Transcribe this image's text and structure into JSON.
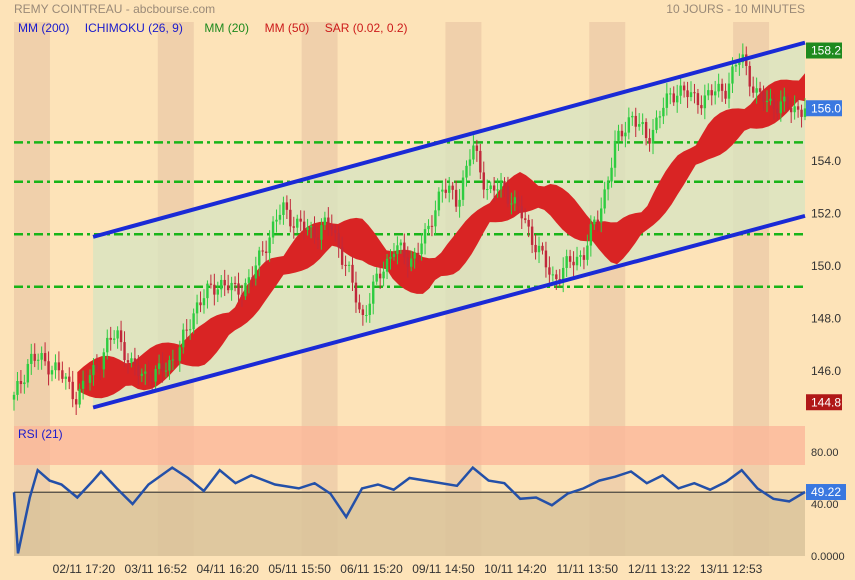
{
  "header": {
    "title": "REMY COINTREAU - abcbourse.com",
    "period": "10 JOURS - 10 MINUTES"
  },
  "legend": [
    {
      "label": "MM (200)",
      "color": "#1a1acc"
    },
    {
      "label": "ICHIMOKU (26, 9)",
      "color": "#1a1acc"
    },
    {
      "label": "MM (20)",
      "color": "#1e8a1e"
    },
    {
      "label": "MM (50)",
      "color": "#cc1a1a"
    },
    {
      "label": "SAR (0.02, 0.2)",
      "color": "#cc1a1a"
    }
  ],
  "colors": {
    "background": "#fde3b8",
    "session_band": "#ebc9a7",
    "channel_fill": "#d8e3c0",
    "channel_line": "#1a2ad6",
    "horizontal_line": "#18b418",
    "cloud": "#d92424",
    "candle_up": "#2ecc40",
    "candle_down": "#c0283a",
    "rsi_line": "#2450a8",
    "rsi_over": "#fbb69a",
    "rsi_under": "#d9c39a"
  },
  "chart_data": [
    {
      "type": "candlestick",
      "title": "REMY COINTREAU",
      "ylim": [
        144.2,
        158.6
      ],
      "y_ticks": [
        146.0,
        148.0,
        150.0,
        152.0,
        154.0,
        156.0
      ],
      "x_tick_labels": [
        "02/11 17:20",
        "03/11 16:52",
        "04/11 16:20",
        "05/11 15:50",
        "06/11 15:20",
        "09/11 14:50",
        "10/11 14:20",
        "11/11 13:50",
        "12/11 13:22",
        "13/11 12:53"
      ],
      "badges": {
        "high": "158.2",
        "last": "156.0",
        "low": "144.8"
      },
      "horizontal_levels": [
        154.7,
        153.2,
        151.2,
        149.2
      ],
      "channel": {
        "upper": {
          "start": [
            0.1,
            151.1
          ],
          "end": [
            1.0,
            158.5
          ]
        },
        "lower": {
          "start": [
            0.1,
            144.6
          ],
          "end": [
            1.0,
            151.9
          ]
        }
      },
      "price_path": [
        [
          0.0,
          144.9
        ],
        [
          0.02,
          146.5
        ],
        [
          0.05,
          146.2
        ],
        [
          0.08,
          145.0
        ],
        [
          0.11,
          146.5
        ],
        [
          0.13,
          147.5
        ],
        [
          0.15,
          146.0
        ],
        [
          0.18,
          145.8
        ],
        [
          0.21,
          146.8
        ],
        [
          0.23,
          148.5
        ],
        [
          0.26,
          149.4
        ],
        [
          0.28,
          149.0
        ],
        [
          0.3,
          149.5
        ],
        [
          0.32,
          151.0
        ],
        [
          0.34,
          152.2
        ],
        [
          0.36,
          151.5
        ],
        [
          0.38,
          151.3
        ],
        [
          0.4,
          151.6
        ],
        [
          0.42,
          150.0
        ],
        [
          0.44,
          148.0
        ],
        [
          0.46,
          149.5
        ],
        [
          0.48,
          150.7
        ],
        [
          0.5,
          150.2
        ],
        [
          0.52,
          151.0
        ],
        [
          0.54,
          153.0
        ],
        [
          0.56,
          152.5
        ],
        [
          0.58,
          154.5
        ],
        [
          0.6,
          152.8
        ],
        [
          0.62,
          153.0
        ],
        [
          0.64,
          152.0
        ],
        [
          0.66,
          150.8
        ],
        [
          0.68,
          149.5
        ],
        [
          0.7,
          150.0
        ],
        [
          0.72,
          150.5
        ],
        [
          0.74,
          152.0
        ],
        [
          0.76,
          154.5
        ],
        [
          0.78,
          155.8
        ],
        [
          0.8,
          154.8
        ],
        [
          0.82,
          156.0
        ],
        [
          0.84,
          156.8
        ],
        [
          0.86,
          156.3
        ],
        [
          0.88,
          156.5
        ],
        [
          0.9,
          156.8
        ],
        [
          0.92,
          158.0
        ],
        [
          0.94,
          156.4
        ],
        [
          0.96,
          156.2
        ],
        [
          0.98,
          156.0
        ],
        [
          1.0,
          156.0
        ]
      ],
      "cloud_path": [
        [
          0.08,
          145.6
        ],
        [
          0.12,
          145.8
        ],
        [
          0.16,
          145.9
        ],
        [
          0.2,
          146.5
        ],
        [
          0.24,
          147.0
        ],
        [
          0.28,
          148.0
        ],
        [
          0.32,
          149.5
        ],
        [
          0.36,
          150.5
        ],
        [
          0.4,
          151.2
        ],
        [
          0.44,
          151.0
        ],
        [
          0.48,
          150.0
        ],
        [
          0.52,
          149.6
        ],
        [
          0.56,
          150.5
        ],
        [
          0.6,
          152.0
        ],
        [
          0.64,
          152.8
        ],
        [
          0.68,
          152.5
        ],
        [
          0.72,
          151.5
        ],
        [
          0.76,
          150.8
        ],
        [
          0.8,
          151.8
        ],
        [
          0.84,
          153.5
        ],
        [
          0.88,
          154.8
        ],
        [
          0.92,
          155.5
        ],
        [
          0.96,
          156.2
        ],
        [
          1.0,
          156.8
        ]
      ]
    },
    {
      "type": "line",
      "title": "RSI (21)",
      "ylim": [
        0,
        100
      ],
      "y_tick_labels": [
        "80.00",
        "40.00",
        "0.0000"
      ],
      "y_ticks": [
        80,
        40,
        0
      ],
      "overbought": 70,
      "oversold": 50,
      "last_value": "49.22",
      "series": [
        {
          "name": "RSI (21)",
          "points": [
            [
              0.0,
              49
            ],
            [
              0.005,
              2
            ],
            [
              0.02,
              45
            ],
            [
              0.03,
              66
            ],
            [
              0.045,
              58
            ],
            [
              0.06,
              55
            ],
            [
              0.08,
              45
            ],
            [
              0.1,
              58
            ],
            [
              0.11,
              65
            ],
            [
              0.13,
              52
            ],
            [
              0.15,
              40
            ],
            [
              0.17,
              55
            ],
            [
              0.2,
              68
            ],
            [
              0.22,
              60
            ],
            [
              0.24,
              50
            ],
            [
              0.26,
              66
            ],
            [
              0.28,
              56
            ],
            [
              0.3,
              62
            ],
            [
              0.33,
              55
            ],
            [
              0.36,
              52
            ],
            [
              0.38,
              56
            ],
            [
              0.4,
              48
            ],
            [
              0.42,
              30
            ],
            [
              0.44,
              52
            ],
            [
              0.46,
              55
            ],
            [
              0.48,
              51
            ],
            [
              0.5,
              60
            ],
            [
              0.53,
              57
            ],
            [
              0.56,
              54
            ],
            [
              0.58,
              68
            ],
            [
              0.6,
              58
            ],
            [
              0.62,
              56
            ],
            [
              0.64,
              44
            ],
            [
              0.66,
              45
            ],
            [
              0.68,
              39
            ],
            [
              0.7,
              48
            ],
            [
              0.72,
              52
            ],
            [
              0.74,
              58
            ],
            [
              0.76,
              61
            ],
            [
              0.78,
              65
            ],
            [
              0.8,
              56
            ],
            [
              0.82,
              62
            ],
            [
              0.84,
              52
            ],
            [
              0.86,
              56
            ],
            [
              0.88,
              51
            ],
            [
              0.9,
              57
            ],
            [
              0.92,
              66
            ],
            [
              0.94,
              52
            ],
            [
              0.96,
              44
            ],
            [
              0.98,
              42
            ],
            [
              1.0,
              49.2
            ]
          ]
        }
      ]
    }
  ]
}
